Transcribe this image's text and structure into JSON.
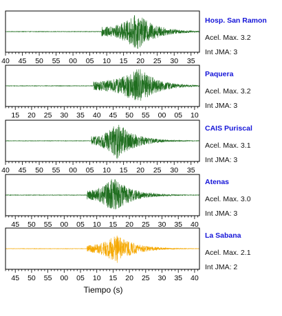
{
  "xlabel": "Tiempo (s)",
  "stations": [
    {
      "name": "Hosp. San Ramon",
      "amax_label": "Acel. Max. 3.2",
      "jma_label": "Int JMA: 3",
      "color": "#1f6e1f",
      "xlim": [
        40,
        97.5
      ],
      "ticks": [
        {
          "v": 40,
          "t": "40"
        },
        {
          "v": 45,
          "t": "45"
        },
        {
          "v": 50,
          "t": "50"
        },
        {
          "v": 55,
          "t": "55"
        },
        {
          "v": 60,
          "t": "00"
        },
        {
          "v": 65,
          "t": "05"
        },
        {
          "v": 70,
          "t": "10"
        },
        {
          "v": 75,
          "t": "15"
        },
        {
          "v": 80,
          "t": "20"
        },
        {
          "v": 85,
          "t": "25"
        },
        {
          "v": 90,
          "t": "30"
        },
        {
          "v": 95,
          "t": "35"
        }
      ],
      "onset": 68.5,
      "peak": 79.0,
      "max_amp": 1.0
    },
    {
      "name": "Paquera",
      "amax_label": "Acel. Max. 3.2",
      "jma_label": "Int JMA: 3",
      "color": "#1f6e1f",
      "xlim": [
        42,
        101.5
      ],
      "ticks": [
        {
          "v": 45,
          "t": "15"
        },
        {
          "v": 50,
          "t": "20"
        },
        {
          "v": 55,
          "t": "25"
        },
        {
          "v": 60,
          "t": "30"
        },
        {
          "v": 65,
          "t": "35"
        },
        {
          "v": 70,
          "t": "40"
        },
        {
          "v": 75,
          "t": "45"
        },
        {
          "v": 80,
          "t": "50"
        },
        {
          "v": 85,
          "t": "55"
        },
        {
          "v": 90,
          "t": "00"
        },
        {
          "v": 95,
          "t": "05"
        },
        {
          "v": 100,
          "t": "10"
        }
      ],
      "onset": 69.0,
      "peak": 83.0,
      "max_amp": 1.0
    },
    {
      "name": "CAIS Puriscal",
      "amax_label": "Acel. Max. 3.1",
      "jma_label": "Int JMA: 3",
      "color": "#1f6e1f",
      "xlim": [
        40,
        97.5
      ],
      "ticks": [
        {
          "v": 40,
          "t": "40"
        },
        {
          "v": 45,
          "t": "45"
        },
        {
          "v": 50,
          "t": "50"
        },
        {
          "v": 55,
          "t": "55"
        },
        {
          "v": 60,
          "t": "00"
        },
        {
          "v": 65,
          "t": "05"
        },
        {
          "v": 70,
          "t": "10"
        },
        {
          "v": 75,
          "t": "15"
        },
        {
          "v": 80,
          "t": "20"
        },
        {
          "v": 85,
          "t": "25"
        },
        {
          "v": 90,
          "t": "30"
        },
        {
          "v": 95,
          "t": "35"
        }
      ],
      "onset": 65.5,
      "peak": 73.0,
      "max_amp": 1.0
    },
    {
      "name": "Atenas",
      "amax_label": "Acel. Max. 3.0",
      "jma_label": "Int JMA: 3",
      "color": "#1f6e1f",
      "xlim": [
        42,
        101.5
      ],
      "ticks": [
        {
          "v": 45,
          "t": "45"
        },
        {
          "v": 50,
          "t": "50"
        },
        {
          "v": 55,
          "t": "55"
        },
        {
          "v": 60,
          "t": "00"
        },
        {
          "v": 65,
          "t": "05"
        },
        {
          "v": 70,
          "t": "10"
        },
        {
          "v": 75,
          "t": "15"
        },
        {
          "v": 80,
          "t": "20"
        },
        {
          "v": 85,
          "t": "25"
        },
        {
          "v": 90,
          "t": "30"
        },
        {
          "v": 95,
          "t": "35"
        },
        {
          "v": 100,
          "t": "40"
        }
      ],
      "onset": 67.0,
      "peak": 75.0,
      "max_amp": 1.0
    },
    {
      "name": "La Sabana",
      "amax_label": "Acel. Max. 2.1",
      "jma_label": "Int JMA: 2",
      "color": "#f5a800",
      "xlim": [
        42,
        101.5
      ],
      "ticks": [
        {
          "v": 45,
          "t": "45"
        },
        {
          "v": 50,
          "t": "50"
        },
        {
          "v": 55,
          "t": "55"
        },
        {
          "v": 60,
          "t": "00"
        },
        {
          "v": 65,
          "t": "05"
        },
        {
          "v": 70,
          "t": "10"
        },
        {
          "v": 75,
          "t": "15"
        },
        {
          "v": 80,
          "t": "20"
        },
        {
          "v": 85,
          "t": "25"
        },
        {
          "v": 90,
          "t": "30"
        },
        {
          "v": 95,
          "t": "35"
        },
        {
          "v": 100,
          "t": "40"
        }
      ],
      "onset": 67.0,
      "peak": 76.0,
      "max_amp": 0.8
    }
  ],
  "chart_data": [
    {
      "type": "line",
      "title": "Hosp. San Ramon",
      "xlabel": "",
      "ylabel": "",
      "xlim": [
        40,
        97.5
      ],
      "series": [
        {
          "name": "Hosp. San Ramon",
          "onset_s": 68.5,
          "peak_s": 79.0
        }
      ],
      "annotations": [
        "Acel. Max. 3.2",
        "Int JMA: 3"
      ]
    },
    {
      "type": "line",
      "title": "Paquera",
      "xlabel": "",
      "ylabel": "",
      "xlim": [
        42,
        101.5
      ],
      "series": [
        {
          "name": "Paquera",
          "onset_s": 69.0,
          "peak_s": 83.0
        }
      ],
      "annotations": [
        "Acel. Max. 3.2",
        "Int JMA: 3"
      ]
    },
    {
      "type": "line",
      "title": "CAIS Puriscal",
      "xlabel": "",
      "ylabel": "",
      "xlim": [
        40,
        97.5
      ],
      "series": [
        {
          "name": "CAIS Puriscal",
          "onset_s": 65.5,
          "peak_s": 73.0
        }
      ],
      "annotations": [
        "Acel. Max. 3.1",
        "Int JMA: 3"
      ]
    },
    {
      "type": "line",
      "title": "Atenas",
      "xlabel": "",
      "ylabel": "",
      "xlim": [
        42,
        101.5
      ],
      "series": [
        {
          "name": "Atenas",
          "onset_s": 67.0,
          "peak_s": 75.0
        }
      ],
      "annotations": [
        "Acel. Max. 3.0",
        "Int JMA: 3"
      ]
    },
    {
      "type": "line",
      "title": "La Sabana",
      "xlabel": "Tiempo (s)",
      "ylabel": "",
      "xlim": [
        42,
        101.5
      ],
      "series": [
        {
          "name": "La Sabana",
          "onset_s": 67.0,
          "peak_s": 76.0
        }
      ],
      "annotations": [
        "Acel. Max. 2.1",
        "Int JMA: 2"
      ]
    }
  ]
}
